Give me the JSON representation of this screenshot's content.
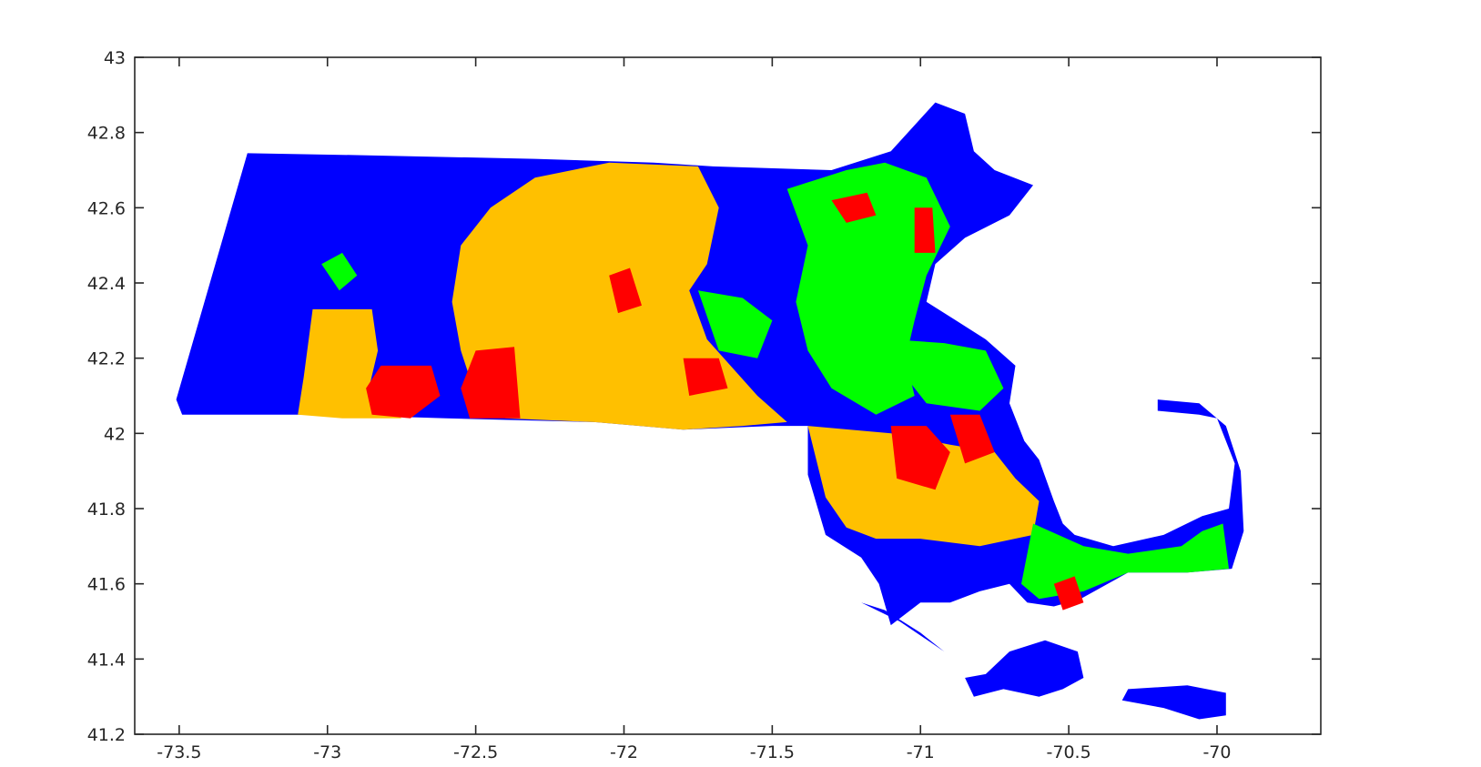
{
  "chart_data": {
    "type": "choropleth",
    "title": "",
    "xlabel": "",
    "ylabel": "",
    "xlim": [
      -73.65,
      -69.65
    ],
    "ylim": [
      41.2,
      43.0
    ],
    "x_ticks": [
      -73.5,
      -73,
      -72.5,
      -72,
      -71.5,
      -71,
      -70.5,
      -70
    ],
    "x_tick_labels": [
      "-73.5",
      "-73",
      "-72.5",
      "-72",
      "-71.5",
      "-71",
      "-70.5",
      "-70"
    ],
    "y_ticks": [
      41.2,
      41.4,
      41.6,
      41.8,
      42.0,
      42.2,
      42.4,
      42.6,
      42.8,
      43.0
    ],
    "y_tick_labels": [
      "41.2",
      "41.4",
      "41.6",
      "41.8",
      "42",
      "42.2",
      "42.4",
      "42.6",
      "42.8",
      "43"
    ],
    "grid": false,
    "legend": "none",
    "palette": {
      "blue": "#0000ff",
      "orange": "#ffc000",
      "green": "#00ff00",
      "red": "#ff0000"
    },
    "regions": [
      {
        "color": "blue",
        "coords": [
          [
            -73.27,
            42.745
          ],
          [
            -72.9,
            42.74
          ],
          [
            -72.3,
            42.73
          ],
          [
            -71.9,
            42.72
          ],
          [
            -71.7,
            42.71
          ],
          [
            -71.3,
            42.7
          ],
          [
            -71.1,
            42.75
          ],
          [
            -70.95,
            42.88
          ],
          [
            -70.85,
            42.85
          ],
          [
            -70.82,
            42.75
          ],
          [
            -70.75,
            42.7
          ],
          [
            -70.62,
            42.66
          ],
          [
            -70.7,
            42.58
          ],
          [
            -70.85,
            42.52
          ],
          [
            -70.95,
            42.45
          ],
          [
            -70.98,
            42.35
          ],
          [
            -70.88,
            42.3
          ],
          [
            -70.78,
            42.25
          ],
          [
            -70.68,
            42.18
          ],
          [
            -70.7,
            42.08
          ],
          [
            -70.65,
            41.98
          ],
          [
            -70.6,
            41.93
          ],
          [
            -70.55,
            41.82
          ],
          [
            -70.52,
            41.76
          ],
          [
            -70.48,
            41.73
          ],
          [
            -70.35,
            41.7
          ],
          [
            -70.18,
            41.73
          ],
          [
            -70.05,
            41.78
          ],
          [
            -69.96,
            41.8
          ],
          [
            -69.94,
            41.92
          ],
          [
            -70.0,
            42.04
          ],
          [
            -70.06,
            42.05
          ],
          [
            -70.2,
            42.06
          ],
          [
            -70.2,
            42.09
          ],
          [
            -70.06,
            42.08
          ],
          [
            -69.97,
            42.02
          ],
          [
            -69.92,
            41.9
          ],
          [
            -69.91,
            41.74
          ],
          [
            -69.95,
            41.64
          ],
          [
            -70.1,
            41.63
          ],
          [
            -70.3,
            41.63
          ],
          [
            -70.46,
            41.56
          ],
          [
            -70.55,
            41.54
          ],
          [
            -70.64,
            41.55
          ],
          [
            -70.7,
            41.6
          ],
          [
            -70.8,
            41.58
          ],
          [
            -70.9,
            41.55
          ],
          [
            -71.0,
            41.55
          ],
          [
            -71.1,
            41.49
          ],
          [
            -71.14,
            41.6
          ],
          [
            -71.2,
            41.67
          ],
          [
            -71.32,
            41.73
          ],
          [
            -71.38,
            41.89
          ],
          [
            -71.38,
            42.02
          ],
          [
            -71.5,
            42.02
          ],
          [
            -71.8,
            42.01
          ],
          [
            -72.1,
            42.03
          ],
          [
            -72.6,
            42.04
          ],
          [
            -73.0,
            42.05
          ],
          [
            -73.49,
            42.05
          ],
          [
            -73.51,
            42.09
          ]
        ]
      },
      {
        "color": "orange",
        "coords": [
          [
            -72.05,
            42.72
          ],
          [
            -71.75,
            42.71
          ],
          [
            -71.68,
            42.6
          ],
          [
            -71.72,
            42.45
          ],
          [
            -71.78,
            42.38
          ],
          [
            -71.72,
            42.25
          ],
          [
            -71.55,
            42.1
          ],
          [
            -71.45,
            42.03
          ],
          [
            -71.6,
            42.02
          ],
          [
            -71.8,
            42.01
          ],
          [
            -72.1,
            42.03
          ],
          [
            -72.4,
            42.04
          ],
          [
            -72.5,
            42.1
          ],
          [
            -72.55,
            42.22
          ],
          [
            -72.58,
            42.35
          ],
          [
            -72.55,
            42.5
          ],
          [
            -72.45,
            42.6
          ],
          [
            -72.3,
            42.68
          ]
        ]
      },
      {
        "color": "orange",
        "coords": [
          [
            -73.05,
            42.33
          ],
          [
            -72.85,
            42.33
          ],
          [
            -72.83,
            42.22
          ],
          [
            -72.86,
            42.12
          ],
          [
            -72.75,
            42.04
          ],
          [
            -72.95,
            42.04
          ],
          [
            -73.1,
            42.05
          ],
          [
            -73.08,
            42.15
          ]
        ]
      },
      {
        "color": "orange",
        "coords": [
          [
            -71.38,
            42.02
          ],
          [
            -71.1,
            42.0
          ],
          [
            -70.9,
            41.97
          ],
          [
            -70.75,
            41.95
          ],
          [
            -70.68,
            41.88
          ],
          [
            -70.6,
            41.82
          ],
          [
            -70.62,
            41.73
          ],
          [
            -70.8,
            41.7
          ],
          [
            -71.0,
            41.72
          ],
          [
            -71.15,
            41.72
          ],
          [
            -71.25,
            41.75
          ],
          [
            -71.32,
            41.83
          ]
        ]
      },
      {
        "color": "green",
        "coords": [
          [
            -71.45,
            42.65
          ],
          [
            -71.25,
            42.7
          ],
          [
            -71.12,
            42.72
          ],
          [
            -70.98,
            42.68
          ],
          [
            -70.9,
            42.55
          ],
          [
            -70.98,
            42.42
          ],
          [
            -71.02,
            42.3
          ],
          [
            -71.05,
            42.2
          ],
          [
            -71.02,
            42.1
          ],
          [
            -71.15,
            42.05
          ],
          [
            -71.3,
            42.12
          ],
          [
            -71.38,
            42.22
          ],
          [
            -71.42,
            42.35
          ],
          [
            -71.38,
            42.5
          ]
        ]
      },
      {
        "color": "green",
        "coords": [
          [
            -71.1,
            42.25
          ],
          [
            -70.92,
            42.24
          ],
          [
            -70.78,
            42.22
          ],
          [
            -70.72,
            42.12
          ],
          [
            -70.8,
            42.06
          ],
          [
            -70.98,
            42.08
          ],
          [
            -71.05,
            42.15
          ]
        ]
      },
      {
        "color": "green",
        "coords": [
          [
            -71.75,
            42.38
          ],
          [
            -71.6,
            42.36
          ],
          [
            -71.5,
            42.3
          ],
          [
            -71.55,
            42.2
          ],
          [
            -71.68,
            42.22
          ]
        ]
      },
      {
        "color": "green",
        "coords": [
          [
            -70.62,
            41.76
          ],
          [
            -70.45,
            41.7
          ],
          [
            -70.3,
            41.68
          ],
          [
            -70.12,
            41.7
          ],
          [
            -70.05,
            41.74
          ],
          [
            -69.98,
            41.76
          ],
          [
            -69.96,
            41.64
          ],
          [
            -70.1,
            41.63
          ],
          [
            -70.3,
            41.63
          ],
          [
            -70.45,
            41.58
          ],
          [
            -70.6,
            41.56
          ],
          [
            -70.66,
            41.6
          ]
        ]
      },
      {
        "color": "red",
        "coords": [
          [
            -72.82,
            42.18
          ],
          [
            -72.65,
            42.18
          ],
          [
            -72.62,
            42.1
          ],
          [
            -72.72,
            42.04
          ],
          [
            -72.85,
            42.05
          ],
          [
            -72.87,
            42.12
          ]
        ]
      },
      {
        "color": "red",
        "coords": [
          [
            -72.5,
            42.22
          ],
          [
            -72.37,
            42.23
          ],
          [
            -72.35,
            42.04
          ],
          [
            -72.52,
            42.04
          ],
          [
            -72.55,
            42.12
          ]
        ]
      },
      {
        "color": "red",
        "coords": [
          [
            -71.1,
            42.02
          ],
          [
            -70.98,
            42.02
          ],
          [
            -70.9,
            41.95
          ],
          [
            -70.95,
            41.85
          ],
          [
            -71.08,
            41.88
          ]
        ]
      },
      {
        "color": "red",
        "coords": [
          [
            -71.3,
            42.62
          ],
          [
            -71.18,
            42.64
          ],
          [
            -71.15,
            42.58
          ],
          [
            -71.25,
            42.56
          ]
        ]
      },
      {
        "color": "red",
        "coords": [
          [
            -71.02,
            42.6
          ],
          [
            -70.96,
            42.6
          ],
          [
            -70.95,
            42.48
          ],
          [
            -71.02,
            42.48
          ]
        ]
      },
      {
        "color": "red",
        "coords": [
          [
            -71.8,
            42.2
          ],
          [
            -71.68,
            42.2
          ],
          [
            -71.65,
            42.12
          ],
          [
            -71.78,
            42.1
          ]
        ]
      },
      {
        "color": "red",
        "coords": [
          [
            -72.05,
            42.42
          ],
          [
            -71.98,
            42.44
          ],
          [
            -71.94,
            42.34
          ],
          [
            -72.02,
            42.32
          ]
        ]
      },
      {
        "color": "red",
        "coords": [
          [
            -70.9,
            42.05
          ],
          [
            -70.8,
            42.05
          ],
          [
            -70.75,
            41.95
          ],
          [
            -70.85,
            41.92
          ]
        ]
      },
      {
        "color": "red",
        "coords": [
          [
            -70.55,
            41.6
          ],
          [
            -70.48,
            41.62
          ],
          [
            -70.45,
            41.55
          ],
          [
            -70.52,
            41.53
          ]
        ]
      },
      {
        "color": "green",
        "coords": [
          [
            -73.02,
            42.45
          ],
          [
            -72.95,
            42.48
          ],
          [
            -72.9,
            42.42
          ],
          [
            -72.96,
            42.38
          ]
        ]
      },
      {
        "color": "blue",
        "coords": [
          [
            -70.85,
            41.35
          ],
          [
            -70.78,
            41.36
          ],
          [
            -70.7,
            41.42
          ],
          [
            -70.58,
            41.45
          ],
          [
            -70.47,
            41.42
          ],
          [
            -70.45,
            41.35
          ],
          [
            -70.52,
            41.32
          ],
          [
            -70.6,
            41.3
          ],
          [
            -70.72,
            41.32
          ],
          [
            -70.82,
            41.3
          ]
        ]
      },
      {
        "color": "blue",
        "coords": [
          [
            -70.3,
            41.32
          ],
          [
            -70.1,
            41.33
          ],
          [
            -69.97,
            41.31
          ],
          [
            -69.97,
            41.25
          ],
          [
            -70.06,
            41.24
          ],
          [
            -70.18,
            41.27
          ],
          [
            -70.32,
            41.29
          ]
        ]
      },
      {
        "color": "blue",
        "coords": [
          [
            -71.2,
            41.55
          ],
          [
            -71.07,
            41.5
          ],
          [
            -70.92,
            41.42
          ],
          [
            -71.0,
            41.47
          ],
          [
            -71.12,
            41.53
          ]
        ]
      }
    ]
  }
}
